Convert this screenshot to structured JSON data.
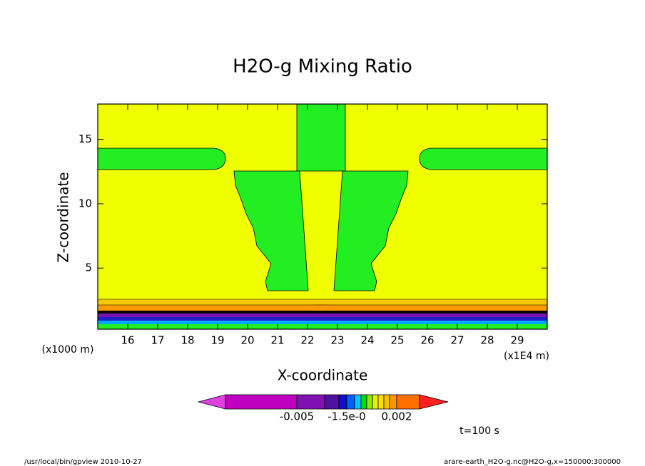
{
  "chart_data": {
    "type": "contour",
    "title": "H2O-g Mixing Ratio",
    "x_label": "X-coordinate",
    "y_label": "Z-coordinate",
    "x_unit_note": "(x1E4 m)",
    "y_unit_note": "(x1000 m)",
    "xlim": [
      15,
      30
    ],
    "ylim": [
      0.25,
      17.75
    ],
    "xticks": [
      16,
      17,
      18,
      19,
      20,
      21,
      22,
      23,
      24,
      25,
      26,
      27,
      28,
      29
    ],
    "yticks": [
      5,
      10,
      15
    ],
    "colorbar_labels": [
      "-0.005",
      "-1.5e-0",
      "0.002"
    ],
    "time_label": "t=100 s",
    "footer_left": "/usr/local/bin/gpview  2010-10-27",
    "footer_right": "arare-earth_H2O-g.nc@H2O-g,x=150000:300000"
  }
}
